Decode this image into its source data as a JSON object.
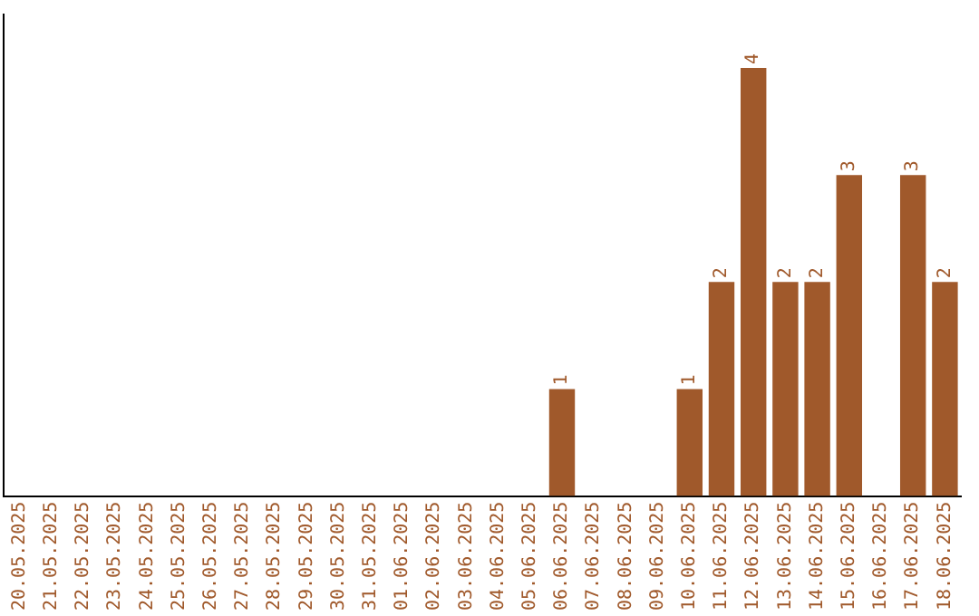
{
  "chart_data": {
    "type": "bar",
    "categories": [
      "20.05.2025",
      "21.05.2025",
      "22.05.2025",
      "23.05.2025",
      "24.05.2025",
      "25.05.2025",
      "26.05.2025",
      "27.05.2025",
      "28.05.2025",
      "29.05.2025",
      "30.05.2025",
      "31.05.2025",
      "01.06.2025",
      "02.06.2025",
      "03.06.2025",
      "04.06.2025",
      "05.06.2025",
      "06.06.2025",
      "07.06.2025",
      "08.06.2025",
      "09.06.2025",
      "10.06.2025",
      "11.06.2025",
      "12.06.2025",
      "13.06.2025",
      "14.06.2025",
      "15.06.2025",
      "16.06.2025",
      "17.06.2025",
      "18.06.2025"
    ],
    "values": [
      null,
      null,
      null,
      null,
      null,
      null,
      null,
      null,
      null,
      null,
      null,
      null,
      null,
      null,
      null,
      null,
      null,
      1,
      null,
      null,
      null,
      1,
      2,
      4,
      2,
      2,
      3,
      null,
      3,
      2
    ],
    "data_labels": true,
    "color": "#a0592b",
    "grid": false,
    "legend": false,
    "tick_labels": "x"
  }
}
